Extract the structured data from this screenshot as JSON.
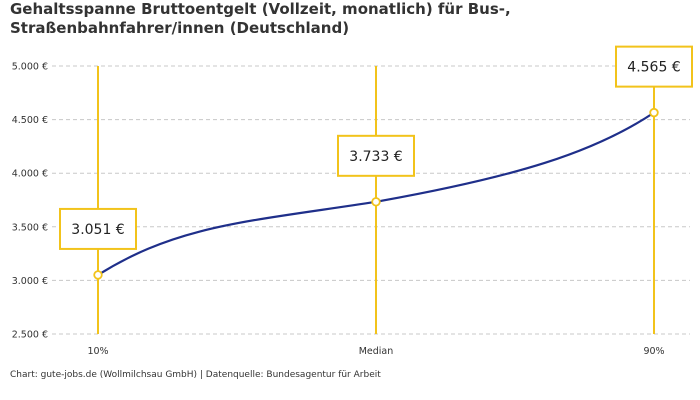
{
  "title": "Gehaltsspanne Bruttoentgelt (Vollzeit, monatlich) für Bus-, Straßenbahnfahrer/innen (Deutschland)",
  "footer": "Chart: gute-jobs.de (Wollmilchsau GmbH) | Datenquelle: Bundesagentur für Arbeit",
  "colors": {
    "line": "#1f2f8a",
    "accent": "#f2c31b",
    "grid": "#c8c8c8",
    "callout_bg": "#ffffff"
  },
  "chart_data": {
    "type": "line",
    "categories": [
      "10%",
      "Median",
      "90%"
    ],
    "values": [
      3051,
      3733,
      4565
    ],
    "value_labels": [
      "3.051 €",
      "3.733 €",
      "4.565 €"
    ],
    "ylim": [
      2500,
      5000
    ],
    "y_ticks": [
      2500,
      3000,
      3500,
      4000,
      4500,
      5000
    ],
    "y_tick_labels": [
      "2.500 €",
      "3.000 €",
      "3.500 €",
      "4.000 €",
      "4.500 €",
      "5.000 €"
    ],
    "grid": true,
    "grid_style": "dashed-horizontal"
  }
}
